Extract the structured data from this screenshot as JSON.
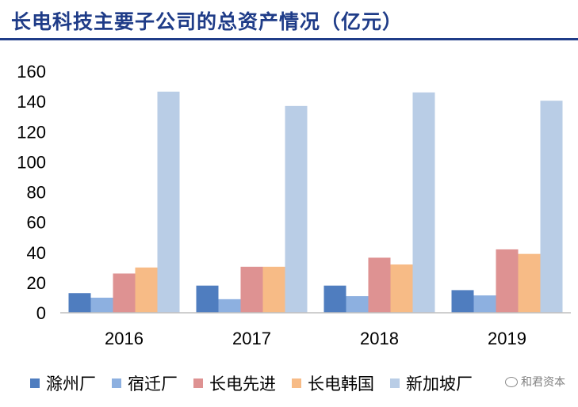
{
  "watermark": {
    "text": "和君资本",
    "icon": "wechat-icon"
  },
  "chart_data": {
    "type": "bar",
    "title": "长电科技主要子公司的总资产情况（亿元）",
    "categories": [
      "2016",
      "2017",
      "2018",
      "2019"
    ],
    "series": [
      {
        "name": "滁州厂",
        "color": "#4f7dbf",
        "values": [
          13,
          18,
          18,
          15
        ]
      },
      {
        "name": "宿迁厂",
        "color": "#8db0e0",
        "values": [
          10,
          9,
          11,
          11.5
        ]
      },
      {
        "name": "长电先进",
        "color": "#de9292",
        "values": [
          26,
          30.5,
          36.5,
          42
        ]
      },
      {
        "name": "长电韩国",
        "color": "#f7bb86",
        "values": [
          30,
          30.5,
          32,
          39
        ]
      },
      {
        "name": "新加坡厂",
        "color": "#b9cde6",
        "values": [
          146.5,
          137,
          146,
          140.5
        ]
      }
    ],
    "yticks": [
      0,
      20,
      40,
      60,
      80,
      100,
      120,
      140,
      160
    ],
    "ylim": [
      0,
      160
    ],
    "xlabel": "",
    "ylabel": "",
    "grid": false,
    "legend": "bottom"
  }
}
